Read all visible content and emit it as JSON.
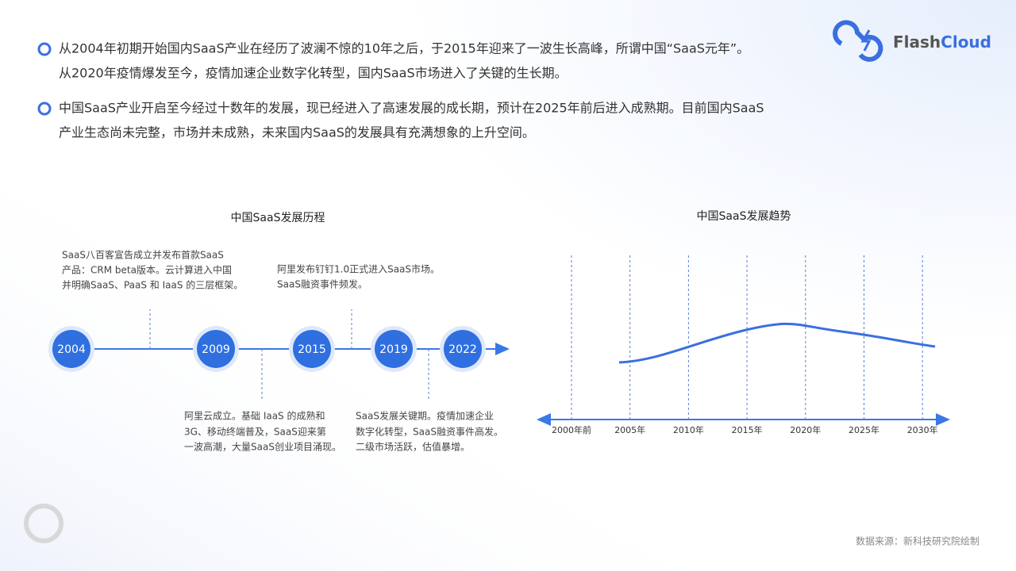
{
  "logo": {
    "part1": "Flash",
    "part2": "Cloud"
  },
  "bullets": [
    {
      "lines": [
        "从2004年初期开始国内SaaS产业在经历了波澜不惊的10年之后，于2015年迎来了一波生长高峰，所谓中国“SaaS元年”。",
        "从2020年疫情爆发至今，疫情加速企业数字化转型，国内SaaS市场进入了关键的生长期。"
      ]
    },
    {
      "lines": [
        "中国SaaS产业开启至今经过十数年的发展，现已经进入了高速发展的成长期，预计在2025年前后进入成熟期。目前国内SaaS",
        "产业生态尚未完整，市场并未成熟，未来国内SaaS的发展具有充满想象的上升空间。"
      ]
    }
  ],
  "timeline": {
    "title": "中国SaaS发展历程",
    "years": [
      "2004",
      "2009",
      "2015",
      "2019",
      "2022"
    ],
    "notes": [
      {
        "lines": [
          "SaaS八百客宣告成立并发布首款SaaS",
          "产品：CRM beta版本。云计算进入中国",
          "并明确SaaS、PaaS 和 IaaS 的三层框架。"
        ]
      },
      {
        "lines": [
          "阿里云成立。基础 IaaS 的成熟和",
          "3G、移动终端普及，SaaS迎来第",
          "一波高潮，大量SaaS创业项目涌现。"
        ]
      },
      {
        "lines": [
          "阿里发布钉钉1.0正式进入SaaS市场。",
          "SaaS融资事件频发。"
        ]
      },
      {
        "lines": [
          "SaaS发展关键期。疫情加速企业",
          "数字化转型，SaaS融资事件高发。",
          "二级市场活跃，估值暴增。"
        ]
      }
    ]
  },
  "trend": {
    "title": "中国SaaS发展趋势",
    "labels": [
      "2000年前",
      "2005年",
      "2010年",
      "2015年",
      "2020年",
      "2025年",
      "2030年"
    ]
  },
  "source": "数据来源：新科技研究院绘制"
}
